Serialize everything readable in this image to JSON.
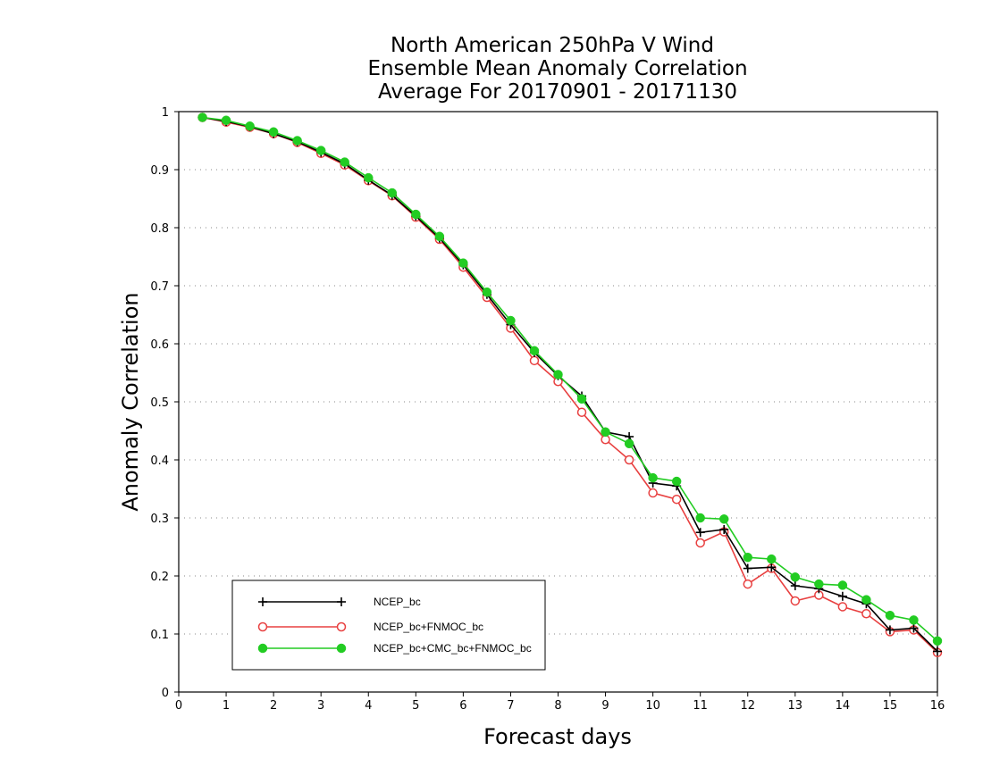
{
  "chart_data": {
    "type": "line",
    "title": [
      "North American 250hPa V Wind",
      "Ensemble Mean Anomaly Correlation",
      "Average For 20170901 - 20171130"
    ],
    "xlabel": "Forecast days",
    "ylabel": "Anomaly Correlation",
    "xlim": [
      0,
      16
    ],
    "ylim": [
      0,
      1
    ],
    "xticks": [
      "0",
      "1",
      "2",
      "3",
      "4",
      "5",
      "6",
      "7",
      "8",
      "9",
      "10",
      "11",
      "12",
      "13",
      "14",
      "15",
      "16"
    ],
    "yticks": [
      "0",
      "0.1",
      "0.2",
      "0.3",
      "0.4",
      "0.5",
      "0.6",
      "0.7",
      "0.8",
      "0.9",
      "1"
    ],
    "grid": "horizontal dotted",
    "legend_position": "bottom-left",
    "x": [
      0.5,
      1,
      1.5,
      2,
      2.5,
      3,
      3.5,
      4,
      4.5,
      5,
      5.5,
      6,
      6.5,
      7,
      7.5,
      8,
      8.5,
      9,
      9.5,
      10,
      10.5,
      11,
      11.5,
      12,
      12.5,
      13,
      13.5,
      14,
      14.5,
      15,
      15.5,
      16
    ],
    "series": [
      {
        "name": "NCEP_bc",
        "color": "#000000",
        "marker": "plus",
        "values": [
          0.99,
          0.983,
          0.974,
          0.962,
          0.948,
          0.93,
          0.91,
          0.882,
          0.856,
          0.82,
          0.782,
          0.736,
          0.685,
          0.633,
          0.585,
          0.545,
          0.51,
          0.448,
          0.44,
          0.36,
          0.355,
          0.275,
          0.28,
          0.213,
          0.215,
          0.183,
          0.178,
          0.165,
          0.152,
          0.107,
          0.11,
          0.07
        ]
      },
      {
        "name": "NCEP_bc+FNMOC_bc",
        "color": "#e84040",
        "marker": "open-circle",
        "values": [
          0.99,
          0.982,
          0.973,
          0.962,
          0.947,
          0.928,
          0.908,
          0.881,
          0.855,
          0.818,
          0.78,
          0.732,
          0.68,
          0.627,
          0.571,
          0.535,
          0.482,
          0.435,
          0.4,
          0.343,
          0.332,
          0.257,
          0.276,
          0.186,
          0.213,
          0.157,
          0.167,
          0.147,
          0.135,
          0.104,
          0.107,
          0.068
        ]
      },
      {
        "name": "NCEP_bc+CMC_bc+FNMOC_bc",
        "color": "#22cc22",
        "marker": "filled-circle",
        "values": [
          0.99,
          0.985,
          0.975,
          0.965,
          0.95,
          0.933,
          0.913,
          0.886,
          0.86,
          0.823,
          0.785,
          0.739,
          0.689,
          0.64,
          0.588,
          0.547,
          0.505,
          0.448,
          0.428,
          0.369,
          0.363,
          0.3,
          0.298,
          0.232,
          0.229,
          0.198,
          0.186,
          0.184,
          0.159,
          0.132,
          0.124,
          0.088
        ]
      }
    ]
  }
}
